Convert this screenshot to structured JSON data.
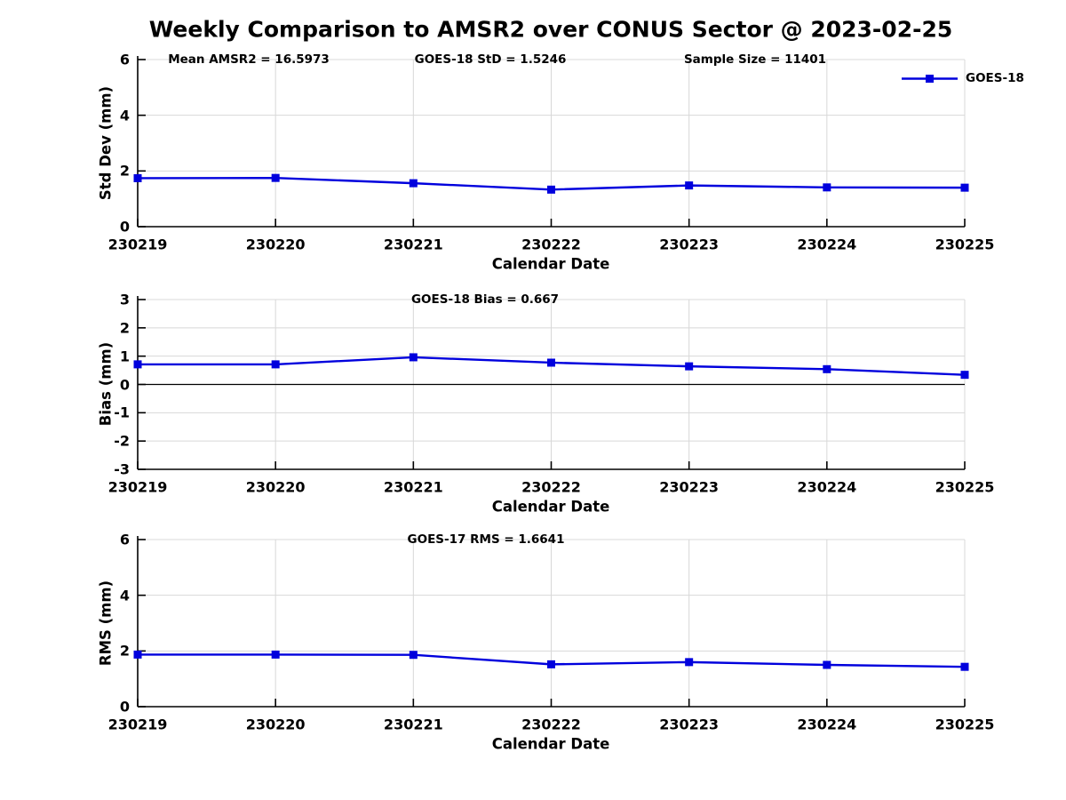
{
  "title": "Weekly Comparison to AMSR2 over CONUS Sector @ 2023-02-25",
  "legend": {
    "label": "GOES-18",
    "position": "top-right",
    "marker": "square"
  },
  "colors": {
    "series_line": "#0000DD",
    "grid": "#D8D8D8",
    "axis": "#000000",
    "zero_line": "#000000",
    "text": "#000000",
    "background": "#FFFFFF"
  },
  "chart_data": [
    {
      "type": "line",
      "subplot": "std-dev",
      "annotations": [
        "Mean AMSR2 = 16.5973",
        "GOES-18 StD = 1.5246",
        "Sample Size = 11401"
      ],
      "ylabel": "Std Dev (mm)",
      "xlabel": "Calendar Date",
      "categories": [
        "230219",
        "230220",
        "230221",
        "230222",
        "230223",
        "230224",
        "230225"
      ],
      "series": [
        {
          "name": "GOES-18",
          "values": [
            1.74,
            1.75,
            1.56,
            1.33,
            1.48,
            1.41,
            1.4
          ]
        }
      ],
      "ylim": [
        0,
        6
      ],
      "yticks": [
        0,
        2,
        4,
        6
      ],
      "grid": true,
      "zero_line": false,
      "marker": "square"
    },
    {
      "type": "line",
      "subplot": "bias",
      "annotations": [
        "GOES-18 Bias  = 0.667"
      ],
      "ylabel": "Bias (mm)",
      "xlabel": "Calendar Date",
      "categories": [
        "230219",
        "230220",
        "230221",
        "230222",
        "230223",
        "230224",
        "230225"
      ],
      "series": [
        {
          "name": "GOES-18",
          "values": [
            0.71,
            0.71,
            0.96,
            0.77,
            0.64,
            0.54,
            0.34
          ]
        }
      ],
      "ylim": [
        -3,
        3
      ],
      "yticks": [
        -3,
        -2,
        -1,
        0,
        1,
        2,
        3
      ],
      "grid": true,
      "zero_line": true,
      "marker": "square"
    },
    {
      "type": "line",
      "subplot": "rms",
      "annotations": [
        "GOES-17 RMS = 1.6641"
      ],
      "ylabel": "RMS (mm)",
      "xlabel": "Calendar Date",
      "categories": [
        "230219",
        "230220",
        "230221",
        "230222",
        "230223",
        "230224",
        "230225"
      ],
      "series": [
        {
          "name": "GOES-18",
          "values": [
            1.87,
            1.87,
            1.86,
            1.52,
            1.6,
            1.5,
            1.43
          ]
        }
      ],
      "ylim": [
        0,
        6
      ],
      "yticks": [
        0,
        2,
        4,
        6
      ],
      "grid": true,
      "zero_line": false,
      "marker": "square"
    }
  ]
}
